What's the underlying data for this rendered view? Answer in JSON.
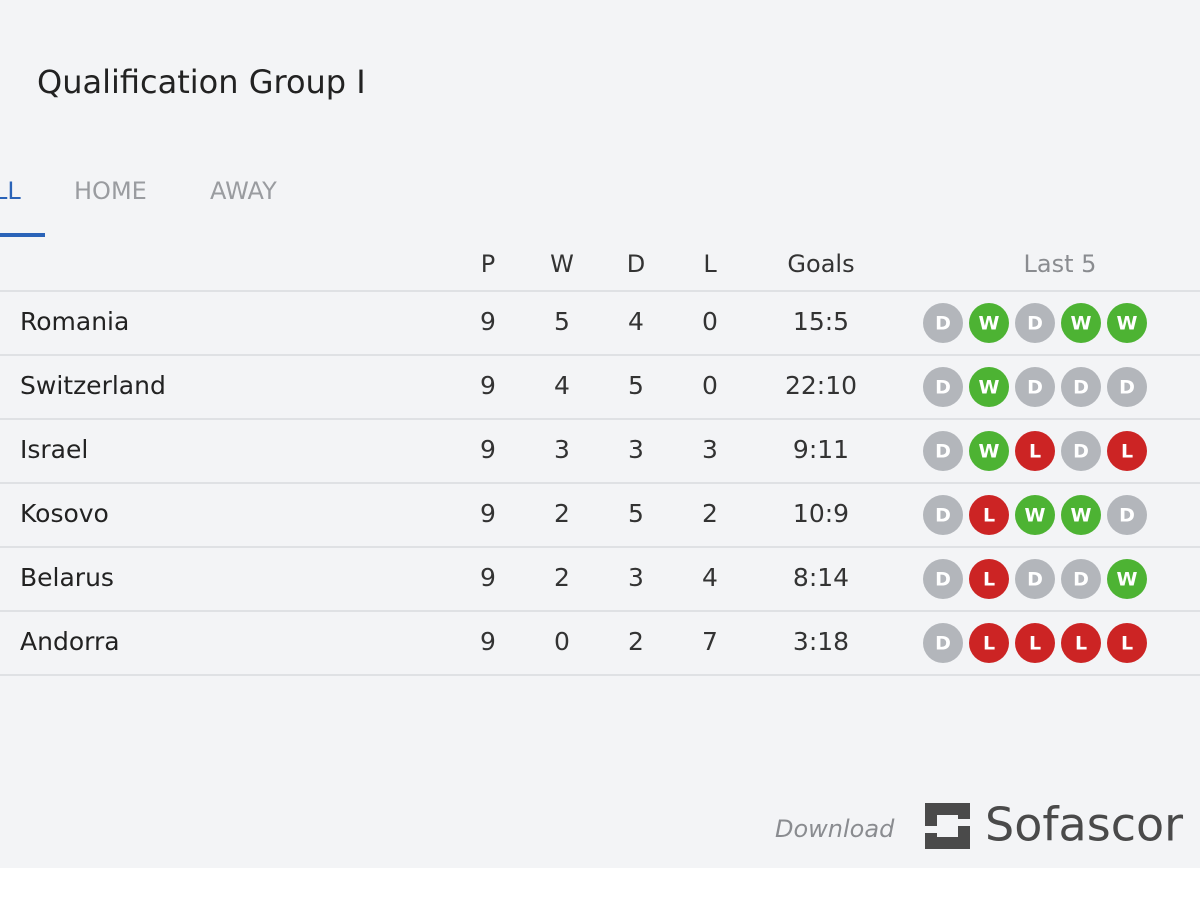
{
  "header": {
    "title": "Qualification Group I"
  },
  "tabs": [
    "LL",
    "HOME",
    "AWAY"
  ],
  "table": {
    "columns": [
      "P",
      "W",
      "D",
      "L",
      "Goals",
      "Last 5"
    ],
    "rows": [
      {
        "team": "Romania",
        "p": "9",
        "w": "5",
        "d": "4",
        "l": "0",
        "goals": "15:5",
        "form": [
          "D",
          "W",
          "D",
          "W",
          "W"
        ]
      },
      {
        "team": "Switzerland",
        "p": "9",
        "w": "4",
        "d": "5",
        "l": "0",
        "goals": "22:10",
        "form": [
          "D",
          "W",
          "D",
          "D",
          "D"
        ]
      },
      {
        "team": "Israel",
        "p": "9",
        "w": "3",
        "d": "3",
        "l": "3",
        "goals": "9:11",
        "form": [
          "D",
          "W",
          "L",
          "D",
          "L"
        ]
      },
      {
        "team": "Kosovo",
        "p": "9",
        "w": "2",
        "d": "5",
        "l": "2",
        "goals": "10:9",
        "form": [
          "D",
          "L",
          "W",
          "W",
          "D"
        ]
      },
      {
        "team": "Belarus",
        "p": "9",
        "w": "2",
        "d": "3",
        "l": "4",
        "goals": "8:14",
        "form": [
          "D",
          "L",
          "D",
          "D",
          "W"
        ]
      },
      {
        "team": "Andorra",
        "p": "9",
        "w": "0",
        "d": "2",
        "l": "7",
        "goals": "3:18",
        "form": [
          "D",
          "L",
          "L",
          "L",
          "L"
        ]
      }
    ],
    "form_colors": {
      "D": "#b3b6bb",
      "W": "#4db333",
      "L": "#cc2424"
    }
  },
  "footer": {
    "download": "Download",
    "brand": "Sofascor"
  }
}
